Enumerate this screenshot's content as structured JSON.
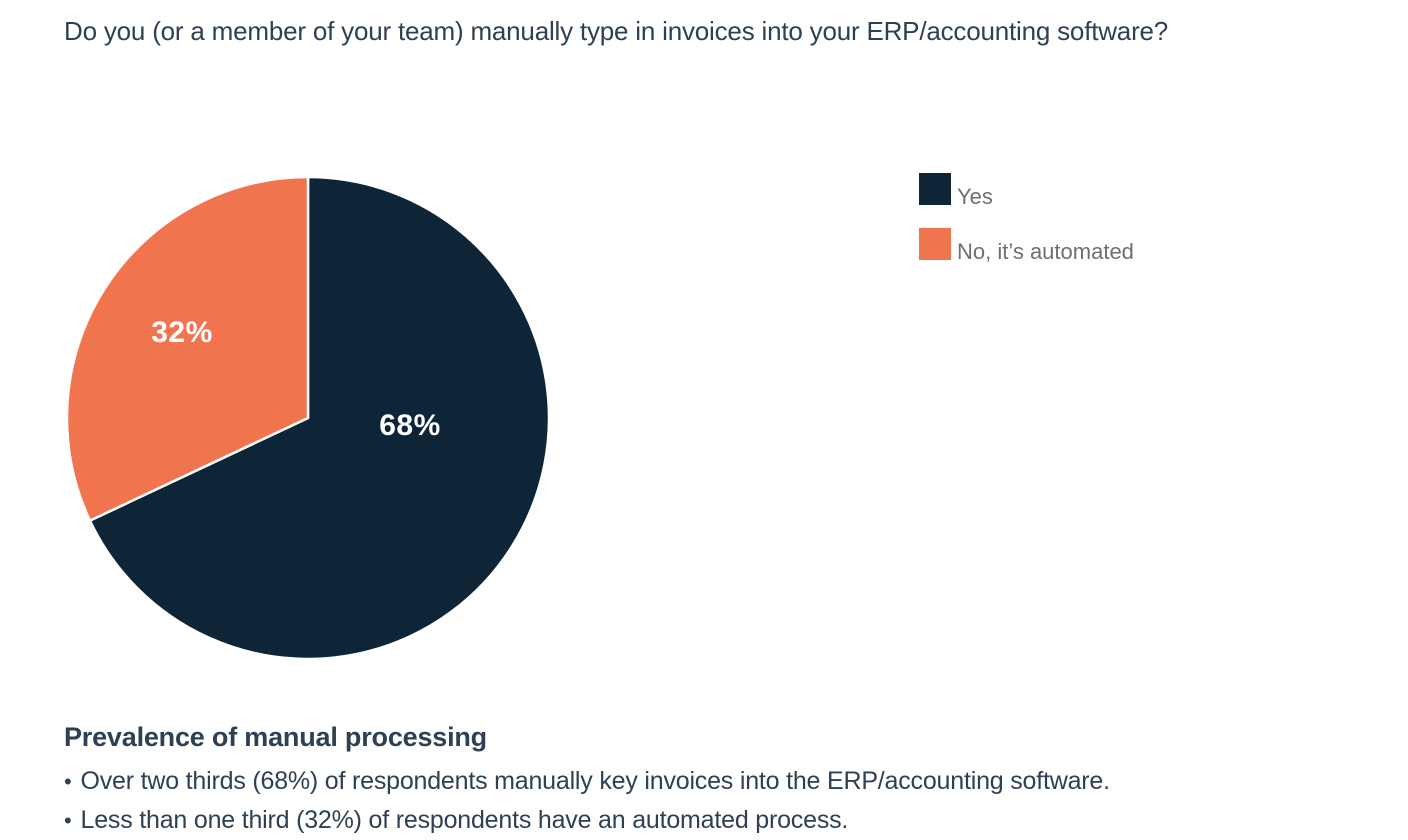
{
  "title": "Do you (or a member of your team) manually type in invoices into your ERP/accounting software?",
  "chart_data": {
    "type": "pie",
    "title": "Do you (or a member of your team) manually type in invoices into your ERP/accounting software?",
    "slices": [
      {
        "label": "Yes",
        "value": 68,
        "data_label": "68%",
        "color": "#0e2437"
      },
      {
        "label": "No, it’s automated",
        "value": 32,
        "data_label": "32%",
        "color": "#f0744e"
      }
    ],
    "start_angle": "top",
    "direction": "clockwise",
    "separator_color": "#ffffff",
    "data_label_color": "#ffffff",
    "legend_position": "right"
  },
  "notes": {
    "heading": "Prevalence of manual processing",
    "bullet_char": "•",
    "bullets": [
      "Over two thirds (68%) of respondents manually key invoices into the ERP/accounting software.",
      "Less than one third (32%) of respondents have an automated process."
    ]
  },
  "colors": {
    "background": "#ffffff",
    "title_text": "#2e4053",
    "legend_text": "#6f6f6f",
    "notes_text": "#2e4053"
  }
}
